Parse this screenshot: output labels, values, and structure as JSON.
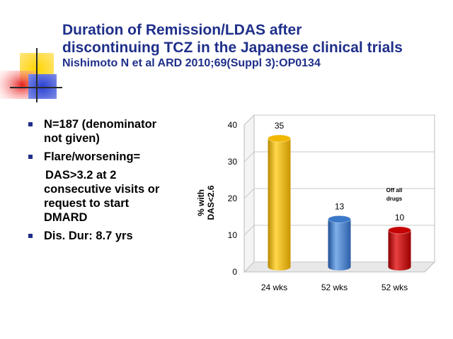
{
  "slide": {
    "title": "Duration of Remission/LDAS after discontinuing TCZ in the Japanese clinical trials",
    "title_line1": "Duration of Remission/LDAS after",
    "title_line2": "discontinuing TCZ in the Japanese clinical trials",
    "subtitle": "Nishimoto N et al ARD 2010;69(Suppl 3):OP0134",
    "title_color": "#1f2f8a"
  },
  "bullets": [
    {
      "text": "N=187 (denominator not given)",
      "marker": true
    },
    {
      "text": "Flare/worsening=",
      "marker": true
    },
    {
      "text": "DAS>3.2 at 2 consecutive visits or request to start DMARD",
      "marker": false
    },
    {
      "text": "Dis. Dur: 8.7 yrs",
      "marker": true
    }
  ],
  "chart_data": {
    "type": "bar",
    "categories": [
      "24 wks",
      "52 wks",
      "52 wks"
    ],
    "values": [
      35,
      13,
      10
    ],
    "data_labels": [
      "35",
      "13",
      "10"
    ],
    "bar_colors": [
      "#f2b800",
      "#3a78c8",
      "#c40000"
    ],
    "ylabel": "% with DAS<2.6",
    "ylabel_line1": "% with",
    "ylabel_line2": "DAS<2.6",
    "ylim": [
      0,
      40
    ],
    "yticks": [
      0,
      10,
      20,
      30,
      40
    ],
    "grid": true,
    "annotations": [
      {
        "category_index": 2,
        "text": "Off all drugs",
        "line1": "Off all",
        "line2": "drugs"
      }
    ]
  }
}
